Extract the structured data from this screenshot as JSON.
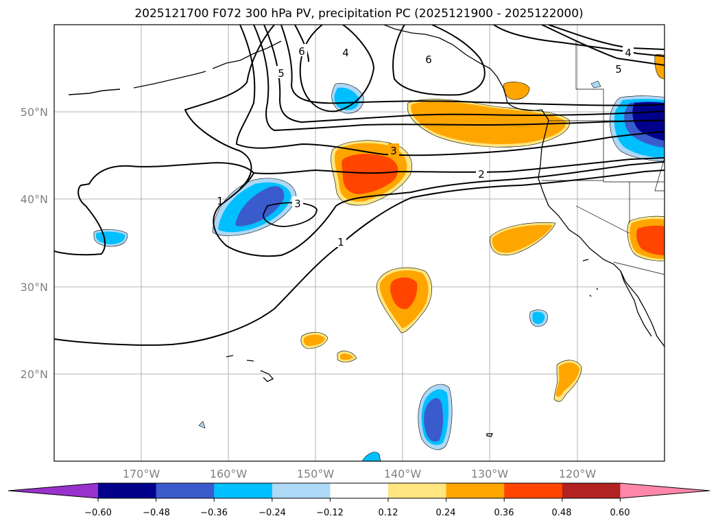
{
  "title": "2025121700 F072 300 hPa PV, precipitation PC (2025121900 - 2025122000)",
  "lat_labels": [
    "50°N",
    "40°N",
    "30°N",
    "20°N"
  ],
  "lon_labels": [
    "170°W",
    "160°W",
    "150°W",
    "140°W",
    "130°W",
    "120°W"
  ],
  "contour_labels": [
    "1",
    "2",
    "3",
    "3",
    "4",
    "4",
    "5",
    "5",
    "6",
    "6",
    "1"
  ],
  "colorbar": {
    "tick_labels": [
      "−0.60",
      "−0.48",
      "−0.36",
      "−0.24",
      "−0.12",
      "0.12",
      "0.24",
      "0.36",
      "0.48",
      "0.60"
    ],
    "colors": [
      "#9932cc",
      "#00008b",
      "#3a5bcc",
      "#00bfff",
      "#add8f6",
      "#ffffff",
      "#ffe680",
      "#ffa500",
      "#ff4500",
      "#b22222",
      "#ff88aa"
    ]
  }
}
